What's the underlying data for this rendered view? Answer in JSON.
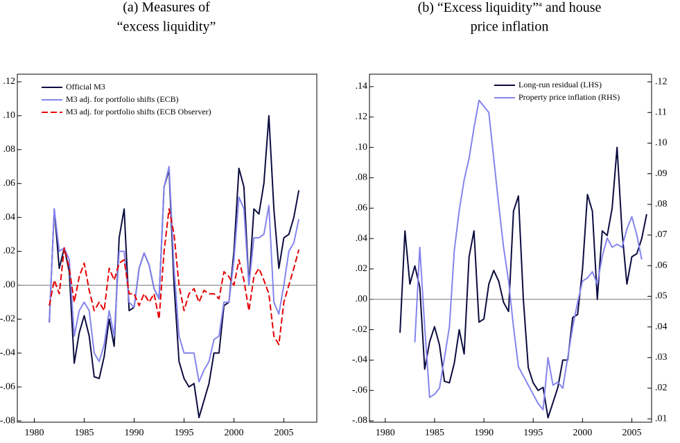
{
  "chart_data": [
    {
      "type": "line",
      "title": [
        "(a) Measures of",
        "“excess liquidity”"
      ],
      "x": [
        1981.5,
        1982,
        1982.5,
        1983,
        1983.5,
        1984,
        1984.5,
        1985,
        1985.5,
        1986,
        1986.5,
        1987,
        1987.5,
        1988,
        1988.5,
        1989,
        1989.5,
        1990,
        1990.5,
        1991,
        1991.5,
        1992,
        1992.5,
        1993,
        1993.5,
        1994,
        1994.5,
        1995,
        1995.5,
        1996,
        1996.5,
        1997,
        1997.5,
        1998,
        1998.5,
        1999,
        1999.5,
        2000,
        2000.5,
        2001,
        2001.5,
        2002,
        2002.5,
        2003,
        2003.5,
        2004,
        2004.5,
        2005,
        2005.5,
        2006,
        2006.5
      ],
      "series": [
        {
          "name": "Official M3",
          "color": "#0b0b3f",
          "dash": false,
          "values": [
            -0.022,
            0.045,
            0.01,
            0.022,
            0.008,
            -0.046,
            -0.028,
            -0.018,
            -0.03,
            -0.054,
            -0.055,
            -0.042,
            -0.02,
            -0.036,
            0.028,
            0.045,
            -0.015,
            -0.013,
            0.01,
            0.019,
            0.012,
            -0.002,
            -0.008,
            0.058,
            0.068,
            0.0,
            -0.045,
            -0.055,
            -0.06,
            -0.058,
            -0.078,
            -0.068,
            -0.058,
            -0.04,
            -0.04,
            -0.012,
            -0.01,
            0.02,
            0.069,
            0.058,
            0.0,
            0.045,
            0.042,
            0.06,
            0.1,
            0.045,
            0.01,
            0.028,
            0.03,
            0.04,
            0.056
          ]
        },
        {
          "name": "M3 adj. for portfolio shifts (ECB)",
          "color": "#8484ee",
          "dash": false,
          "values": [
            -0.022,
            0.045,
            0.02,
            0.022,
            0.015,
            -0.03,
            -0.015,
            -0.01,
            -0.015,
            -0.04,
            -0.045,
            -0.035,
            -0.015,
            -0.03,
            0.02,
            0.02,
            -0.01,
            -0.013,
            0.01,
            0.019,
            0.012,
            -0.002,
            -0.008,
            0.058,
            0.07,
            0.01,
            -0.03,
            -0.04,
            -0.04,
            -0.04,
            -0.057,
            -0.05,
            -0.045,
            -0.032,
            -0.03,
            -0.01,
            -0.01,
            0.015,
            0.052,
            0.045,
            0.0,
            0.028,
            0.028,
            0.03,
            0.047,
            -0.01,
            -0.017,
            0.0,
            0.02,
            0.025,
            0.039
          ]
        },
        {
          "name": "M3 adj. for portfolio shifts (ECB Observer)",
          "color": "#e60000",
          "dash": true,
          "values": [
            -0.012,
            0.003,
            -0.005,
            0.022,
            0.01,
            -0.01,
            0.005,
            0.013,
            -0.003,
            -0.015,
            -0.01,
            -0.015,
            0.01,
            0.003,
            0.013,
            0.015,
            -0.005,
            -0.005,
            -0.012,
            -0.005,
            -0.01,
            -0.005,
            -0.02,
            0.02,
            0.045,
            0.03,
            0.0,
            -0.015,
            -0.005,
            -0.002,
            -0.01,
            -0.003,
            -0.005,
            -0.005,
            -0.008,
            0.008,
            0.005,
            0.0,
            0.015,
            0.003,
            -0.015,
            0.005,
            0.01,
            0.003,
            -0.005,
            -0.03,
            -0.035,
            -0.01,
            0.0,
            0.01,
            0.021
          ]
        }
      ],
      "xlim": [
        1978.3,
        2008.3
      ],
      "xticks": [
        1980,
        1985,
        1990,
        1995,
        2000,
        2005
      ],
      "ylim": [
        -0.0808,
        0.1245
      ],
      "yticks": [
        {
          "value": 0.12,
          "label": ".12"
        },
        {
          "value": 0.1,
          "label": ".10"
        },
        {
          "value": 0.08,
          "label": ".08"
        },
        {
          "value": 0.06,
          "label": ".06"
        },
        {
          "value": 0.04,
          "label": ".04"
        },
        {
          "value": 0.02,
          "label": ".02"
        },
        {
          "value": 0,
          "label": ".00"
        },
        {
          "value": -0.02,
          "label": "-.02"
        },
        {
          "value": -0.04,
          "label": "-.04"
        },
        {
          "value": -0.06,
          "label": "-.06"
        },
        {
          "value": -0.08,
          "label": "-.08"
        }
      ],
      "zero_line": true,
      "legend": "upper-left"
    },
    {
      "type": "line",
      "title_parts": [
        "(b) “Excess liquidity”",
        "a",
        " and house"
      ],
      "title_line2": "price inflation",
      "x": [
        1981.5,
        1982,
        1982.5,
        1983,
        1983.5,
        1984,
        1984.5,
        1985,
        1985.5,
        1986,
        1986.5,
        1987,
        1987.5,
        1988,
        1988.5,
        1989,
        1989.5,
        1990,
        1990.5,
        1991,
        1991.5,
        1992,
        1992.5,
        1993,
        1993.5,
        1994,
        1994.5,
        1995,
        1995.5,
        1996,
        1996.5,
        1997,
        1997.5,
        1998,
        1998.5,
        1999,
        1999.5,
        2000,
        2000.5,
        2001,
        2001.5,
        2002,
        2002.5,
        2003,
        2003.5,
        2004,
        2004.5,
        2005,
        2005.5,
        2006,
        2006.5
      ],
      "series": [
        {
          "name": "Long-run residual (LHS)",
          "color": "#0b0b3f",
          "dash": false,
          "values": [
            -0.022,
            0.045,
            0.01,
            0.022,
            0.008,
            -0.046,
            -0.028,
            -0.018,
            -0.03,
            -0.054,
            -0.055,
            -0.042,
            -0.02,
            -0.036,
            0.028,
            0.045,
            -0.015,
            -0.013,
            0.01,
            0.019,
            0.012,
            -0.002,
            -0.008,
            0.058,
            0.068,
            0.0,
            -0.045,
            -0.055,
            -0.06,
            -0.058,
            -0.078,
            -0.068,
            -0.058,
            -0.04,
            -0.04,
            -0.012,
            -0.01,
            0.02,
            0.069,
            0.058,
            0.0,
            0.045,
            0.042,
            0.06,
            0.1,
            0.045,
            0.01,
            0.028,
            0.03,
            0.04,
            0.056
          ]
        },
        {
          "name": "Property price inflation (RHS)",
          "color": "#8484ee",
          "dash": false,
          "axis": "y2",
          "values": [
            null,
            null,
            null,
            0.035,
            0.066,
            0.04,
            0.017,
            0.018,
            0.02,
            0.03,
            0.04,
            0.065,
            0.078,
            0.088,
            0.095,
            0.105,
            0.114,
            0.112,
            0.11,
            0.095,
            0.08,
            0.066,
            0.055,
            0.04,
            0.027,
            0.024,
            0.021,
            0.018,
            0.015,
            0.013,
            0.03,
            0.021,
            0.022,
            0.02,
            0.03,
            0.04,
            0.048,
            0.055,
            0.056,
            0.058,
            0.054,
            0.063,
            0.069,
            0.066,
            0.067,
            0.066,
            0.072,
            0.076,
            0.07,
            0.062,
            null
          ]
        }
      ],
      "xlim": [
        1978.4,
        2007.0
      ],
      "xticks": [
        1980,
        1985,
        1990,
        1995,
        2000,
        2005
      ],
      "ylim": [
        -0.0809,
        0.1482
      ],
      "yticks": [
        {
          "value": 0.14,
          "label": ".14"
        },
        {
          "value": 0.12,
          "label": ".12"
        },
        {
          "value": 0.1,
          "label": ".10"
        },
        {
          "value": 0.08,
          "label": ".08"
        },
        {
          "value": 0.06,
          "label": ".06"
        },
        {
          "value": 0.04,
          "label": ".04"
        },
        {
          "value": 0.02,
          "label": ".02"
        },
        {
          "value": 0,
          "label": ".00"
        },
        {
          "value": -0.02,
          "label": "-.02"
        },
        {
          "value": -0.04,
          "label": "-.04"
        },
        {
          "value": -0.06,
          "label": "-.06"
        },
        {
          "value": -0.08,
          "label": "-.08"
        }
      ],
      "y2lim": [
        0.0089,
        0.1225
      ],
      "y2ticks": [
        {
          "value": 0.12,
          "label": ".12"
        },
        {
          "value": 0.11,
          "label": ".11"
        },
        {
          "value": 0.1,
          "label": ".10"
        },
        {
          "value": 0.09,
          "label": ".09"
        },
        {
          "value": 0.08,
          "label": ".08"
        },
        {
          "value": 0.07,
          "label": ".07"
        },
        {
          "value": 0.06,
          "label": ".06"
        },
        {
          "value": 0.05,
          "label": ".05"
        },
        {
          "value": 0.04,
          "label": ".04"
        },
        {
          "value": 0.03,
          "label": ".03"
        },
        {
          "value": 0.02,
          "label": ".02"
        },
        {
          "value": 0.01,
          "label": ".01"
        }
      ],
      "zero_line": true,
      "legend": "upper-right"
    }
  ]
}
